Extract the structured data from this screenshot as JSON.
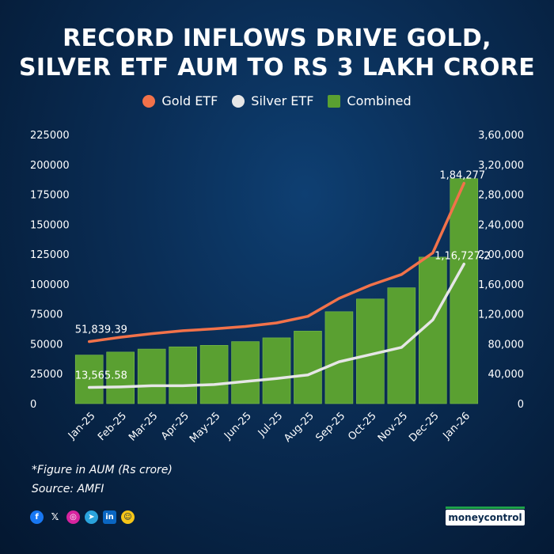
{
  "title_lines": [
    "RECORD INFLOWS DRIVE GOLD,",
    "SILVER ETF AUM TO RS 3 LAKH CRORE"
  ],
  "legend": {
    "gold": "Gold ETF",
    "silver": "Silver ETF",
    "combined": "Combined"
  },
  "colors": {
    "gold": "#f2724a",
    "silver": "#e6e6e6",
    "combined": "#5aa031",
    "combined_edge": "#7cbf4a"
  },
  "footnote": {
    "note": "*Figure in AUM (Rs crore)",
    "source": "Source: AMFI"
  },
  "social_icons": [
    "facebook-icon",
    "x-icon",
    "instagram-icon",
    "telegram-icon",
    "linkedin-icon",
    "snapchat-icon"
  ],
  "brand": "moneycontrol",
  "chart_data": {
    "type": "bar",
    "categories": [
      "Jan-25",
      "Feb-25",
      "Mar-25",
      "Apr-25",
      "May-25",
      "Jun-25",
      "Jul-25",
      "Aug-25",
      "Sep-25",
      "Oct-25",
      "Nov-25",
      "Dec-25",
      "Jan-26"
    ],
    "left_axis": {
      "ylim": [
        0,
        225000
      ],
      "ticks": [
        "0",
        "25000",
        "50000",
        "75000",
        "100000",
        "125000",
        "150000",
        "175000",
        "200000",
        "225000"
      ]
    },
    "right_axis": {
      "ylim": [
        0,
        360000
      ],
      "ticks": [
        "0",
        "40,000",
        "80,000",
        "1,20,000",
        "1,60,000",
        "2,00,000",
        "2,40,000",
        "2,80,000",
        "3,20,000",
        "3,60,000"
      ]
    },
    "series": [
      {
        "name": "Gold ETF",
        "type": "line",
        "axis": "left",
        "values": [
          51839.39,
          55500,
          58500,
          61000,
          62500,
          64500,
          67500,
          73000,
          88000,
          99000,
          108000,
          126000,
          184277
        ],
        "labels": {
          "0": "51,839.39",
          "12": "1,84,277"
        }
      },
      {
        "name": "Silver ETF",
        "type": "line",
        "axis": "left",
        "values": [
          13565.58,
          14000,
          15000,
          15000,
          16000,
          18500,
          21000,
          24000,
          35000,
          41000,
          47000,
          70000,
          116727.2
        ],
        "labels": {
          "0": "13,565.58",
          "12": "1,16,727.2"
        }
      },
      {
        "name": "Combined",
        "type": "bar",
        "axis": "right",
        "values": [
          65000,
          69000,
          73000,
          76000,
          78000,
          83000,
          88000,
          97000,
          123000,
          140000,
          155000,
          196000,
          301000
        ]
      }
    ]
  }
}
